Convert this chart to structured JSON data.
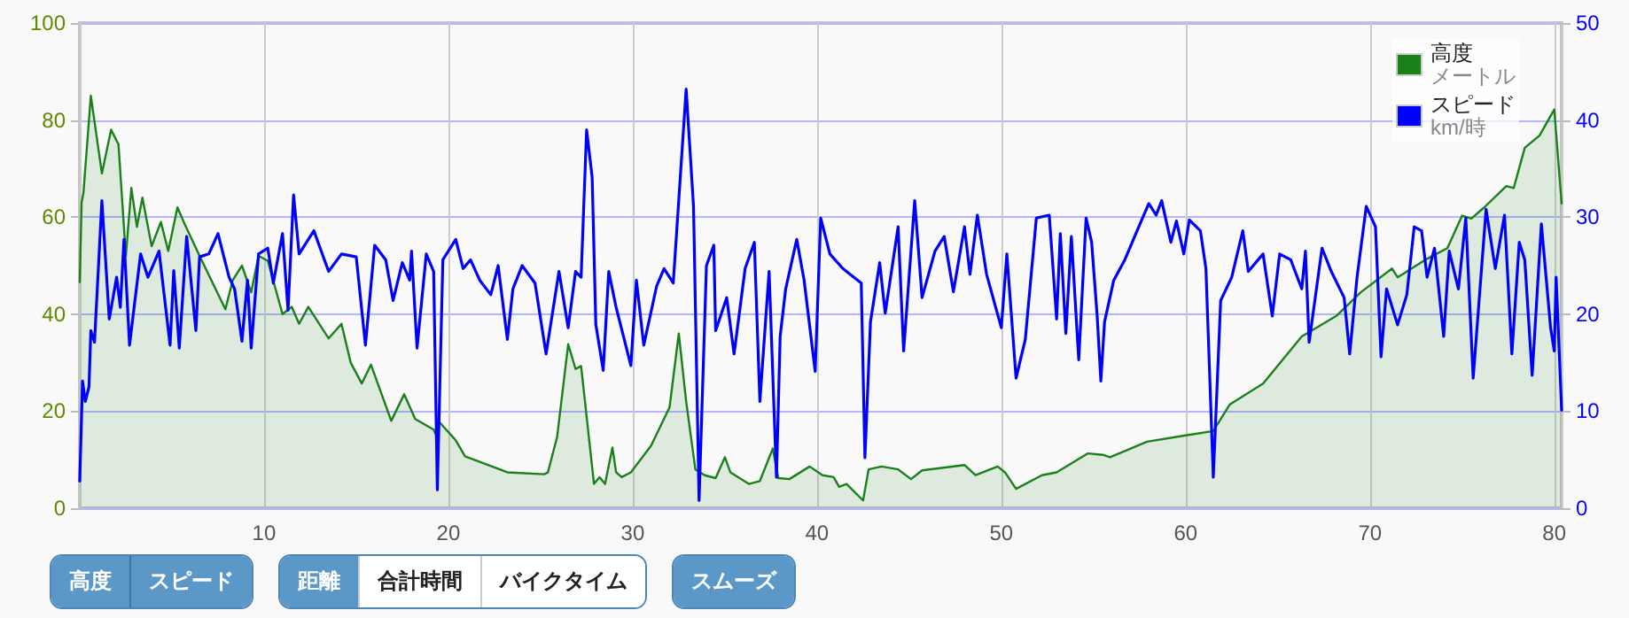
{
  "chart_data": {
    "type": "area",
    "xlim": [
      0,
      80.4
    ],
    "xticks": [
      10,
      20,
      30,
      40,
      50,
      60,
      70,
      80
    ],
    "ylim": [
      0,
      100
    ],
    "yticks": [
      0,
      20,
      40,
      60,
      80,
      100
    ],
    "y2lim": [
      0,
      50
    ],
    "y2ticks": [
      0,
      10,
      20,
      30,
      40,
      50
    ],
    "grid": true,
    "legend": "top right",
    "marker": "none",
    "line_style": "solid",
    "annotations": [
      "高度",
      "スピード",
      "距離",
      "合計時間",
      "バイクタイム",
      "スムーズ",
      "メートル",
      "km/時"
    ],
    "series": [
      {
        "name": "高度",
        "type": "area",
        "color": "#1a801a",
        "x": [
          0,
          0.1,
          0.2,
          0.6,
          1.2,
          1.7,
          2.1,
          2.5,
          2.8,
          3.1,
          3.4,
          3.9,
          4.4,
          4.8,
          5.3,
          5.7,
          6.5,
          7.9,
          8.3,
          8.8,
          9.3,
          9.7,
          10.2,
          11.0,
          11.5,
          11.9,
          12.4,
          13.5,
          14.2,
          14.7,
          15.3,
          15.8,
          16.9,
          17.6,
          18.2,
          19.2,
          19.3,
          19.5,
          20.4,
          20.9,
          23.2,
          25.2,
          25.4,
          25.9,
          26.5,
          26.9,
          27.2,
          27.9,
          28.2,
          28.5,
          28.9,
          29.1,
          29.4,
          29.9,
          31.0,
          32.0,
          32.5,
          32.9,
          33.4,
          33.9,
          34.5,
          35.0,
          35.3,
          36.3,
          36.9,
          37.6,
          37.9,
          38.5,
          39.6,
          40.3,
          40.9,
          41.2,
          41.6,
          42.5,
          42.8,
          43.5,
          44.4,
          45.1,
          45.7,
          48.0,
          48.6,
          49.8,
          50.2,
          50.8,
          52.2,
          53.0,
          54.7,
          55.5,
          55.9,
          57.9,
          60.0,
          61.5,
          62.4,
          64.2,
          66.3,
          68.2,
          69.5,
          71.2,
          71.5,
          73.0,
          74.2,
          75.0,
          75.5,
          76.2,
          77.4,
          77.8,
          78.4,
          79.2,
          80.0,
          80.4
        ],
        "values": [
          46.6,
          63,
          65,
          85,
          69,
          78,
          75,
          52,
          66,
          58,
          64,
          54,
          59,
          53,
          62,
          58.5,
          52,
          41,
          47,
          50,
          44.5,
          52,
          51,
          40,
          41.5,
          38,
          41.5,
          35,
          38,
          30,
          25.7,
          29.6,
          18,
          23.5,
          18.4,
          16.2,
          15.3,
          17.8,
          14,
          10.7,
          7.4,
          7,
          7.4,
          14.7,
          33.8,
          28.7,
          29.3,
          5,
          6.4,
          5,
          12.5,
          7.4,
          6.4,
          7.4,
          12.9,
          20.8,
          36,
          22,
          8,
          6.8,
          6.2,
          10.5,
          7.4,
          5,
          5.6,
          12.3,
          6.2,
          6,
          8.6,
          6.8,
          6.4,
          4.4,
          5,
          1.6,
          8,
          8.6,
          8,
          6,
          7.8,
          8.9,
          6.8,
          8.6,
          7.4,
          4,
          6.8,
          7.4,
          11.3,
          11,
          10.5,
          13.7,
          15,
          15.9,
          21.4,
          25.7,
          35.4,
          39.7,
          44.5,
          49.4,
          47.6,
          51.2,
          53.6,
          60.3,
          59.7,
          62,
          66.4,
          66,
          74.3,
          76.8,
          82.2,
          62.8
        ]
      },
      {
        "name": "スピード",
        "type": "line",
        "axis": "y2",
        "color": "#0000ff",
        "x": [
          0,
          0.15,
          0.3,
          0.5,
          0.6,
          0.8,
          1.2,
          1.6,
          2.0,
          2.2,
          2.4,
          2.7,
          3.3,
          3.7,
          4.3,
          4.9,
          5.1,
          5.4,
          5.8,
          6.3,
          6.5,
          7.0,
          7.5,
          8.1,
          8.4,
          8.8,
          9.1,
          9.3,
          9.7,
          10.2,
          10.5,
          11.0,
          11.3,
          11.6,
          11.9,
          12.7,
          13.5,
          14.2,
          15.0,
          15.5,
          16.0,
          16.6,
          17.0,
          17.5,
          17.9,
          18.0,
          18.3,
          18.8,
          19.2,
          19.4,
          19.7,
          20.4,
          20.8,
          21.2,
          21.7,
          22.3,
          22.7,
          23.2,
          23.5,
          24.0,
          24.7,
          25.3,
          26.0,
          26.5,
          26.9,
          27.2,
          27.5,
          27.8,
          28.0,
          28.4,
          28.7,
          29.1,
          29.9,
          30.2,
          30.6,
          31.3,
          31.7,
          32.2,
          32.9,
          33.3,
          33.6,
          34.0,
          34.4,
          34.5,
          35.1,
          35.5,
          36.1,
          36.6,
          36.9,
          37.4,
          37.8,
          38.0,
          38.3,
          38.9,
          39.3,
          39.9,
          40.2,
          40.7,
          41.4,
          42.4,
          42.6,
          42.9,
          43.4,
          43.7,
          44.4,
          44.7,
          45.3,
          45.7,
          46.4,
          46.9,
          47.4,
          48.0,
          48.3,
          48.7,
          49.2,
          50.0,
          50.3,
          50.8,
          51.3,
          51.9,
          52.6,
          53.0,
          53.2,
          53.5,
          53.8,
          54.2,
          54.6,
          54.9,
          55.2,
          55.4,
          55.6,
          56.1,
          56.7,
          57.3,
          58.0,
          58.4,
          58.7,
          59.2,
          59.5,
          59.9,
          60.2,
          60.8,
          61.1,
          61.5,
          61.9,
          62.5,
          63.1,
          63.4,
          64.2,
          64.7,
          65.1,
          65.7,
          66.3,
          66.5,
          66.7,
          67.4,
          67.9,
          68.6,
          68.9,
          69.3,
          69.8,
          70.3,
          70.6,
          70.9,
          71.5,
          72.0,
          72.4,
          72.8,
          73.1,
          73.5,
          74.0,
          74.3,
          74.8,
          75.2,
          75.6,
          76.3,
          76.8,
          77.3,
          77.7,
          78.1,
          78.4,
          78.8,
          79.3,
          79.8,
          80.0,
          80.1,
          80.4
        ],
        "values": [
          2.8,
          13.1,
          11,
          12.5,
          18.3,
          17.1,
          31.7,
          19.5,
          23.8,
          20.7,
          27.7,
          16.8,
          26.2,
          23.8,
          26.5,
          16.8,
          24.5,
          16.5,
          28,
          18.3,
          25.9,
          26.2,
          28.3,
          23.8,
          22.6,
          17.2,
          23.5,
          16.5,
          26.2,
          26.8,
          23.2,
          28.3,
          20.4,
          32.3,
          26.2,
          28.6,
          24.4,
          26.2,
          25.9,
          16.8,
          27.1,
          25.6,
          21.4,
          25.3,
          23.5,
          26.5,
          16.5,
          26.2,
          24.4,
          1.9,
          25.6,
          27.7,
          24.7,
          25.6,
          23.5,
          22,
          25,
          17.4,
          22.6,
          25,
          23.2,
          15.9,
          24.4,
          18.6,
          24.4,
          23.8,
          39,
          34.1,
          18.9,
          14.2,
          24.4,
          20.7,
          14.7,
          23.5,
          16.8,
          22.9,
          24.7,
          23.2,
          43.2,
          31.1,
          0.8,
          25,
          27.1,
          18.3,
          21.7,
          15.9,
          24.7,
          27.4,
          11,
          24.4,
          3.2,
          17.7,
          22.6,
          27.7,
          23.5,
          14.1,
          29.9,
          26.2,
          24.7,
          23.2,
          5.2,
          19.2,
          25.3,
          20.1,
          29,
          16.2,
          31.7,
          21.7,
          26.5,
          28,
          22.3,
          29,
          24.1,
          30.2,
          24.1,
          18.6,
          26.2,
          13.4,
          17.4,
          29.9,
          30.2,
          19.5,
          28.3,
          18,
          28,
          15.3,
          29.9,
          27.4,
          19.8,
          13.1,
          19.2,
          23.5,
          25.6,
          28.3,
          31.4,
          30.2,
          31.7,
          27.4,
          29.6,
          26.2,
          29.7,
          28.6,
          24.7,
          3.2,
          21.4,
          23.8,
          28.6,
          24.4,
          26.2,
          19.8,
          26.2,
          25.6,
          22.6,
          26.5,
          17.1,
          26.8,
          24.4,
          21.7,
          15.9,
          23.8,
          31.1,
          29,
          15.6,
          22.6,
          18.9,
          22,
          29,
          28.6,
          23.8,
          26.8,
          17.7,
          26.5,
          22.6,
          29.9,
          13.4,
          30.8,
          24.7,
          30.2,
          15.9,
          27.4,
          25.6,
          13.7,
          29.3,
          18.6,
          16.2,
          23.8,
          10.1
        ]
      }
    ]
  }
}
